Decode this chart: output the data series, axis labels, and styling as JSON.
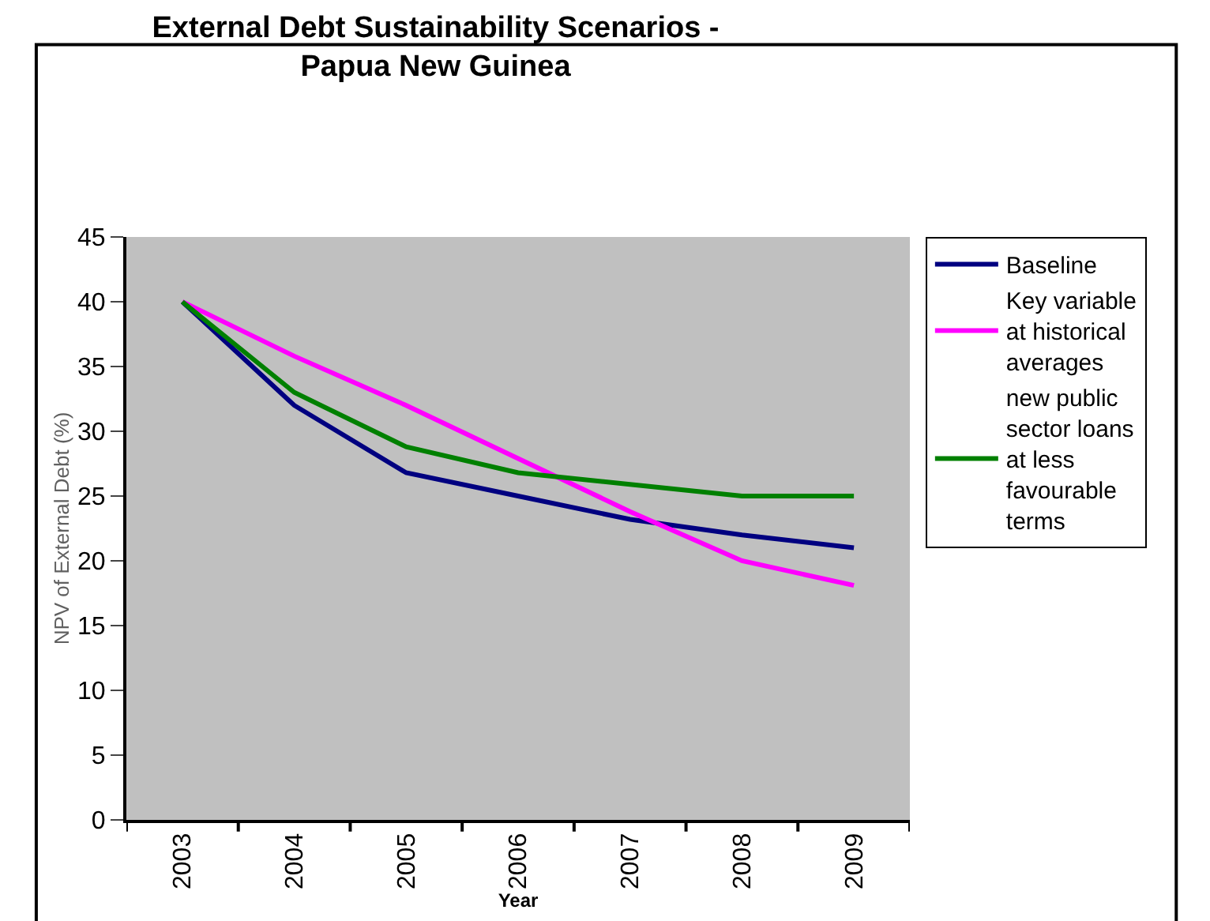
{
  "chart_data": {
    "type": "line",
    "title": "External Debt Sustainability Scenarios - Papua New Guinea",
    "xlabel": "Year",
    "ylabel": "NPV of External Debt (%)",
    "categories": [
      "2003",
      "2004",
      "2005",
      "2006",
      "2007",
      "2008",
      "2009"
    ],
    "series": [
      {
        "name": "Baseline",
        "color": "#000080",
        "values": [
          40,
          32,
          26.8,
          25,
          23.2,
          22,
          21
        ]
      },
      {
        "name": "Key variable at historical averages",
        "color": "#ff00ff",
        "values": [
          40,
          35.8,
          32,
          27.9,
          23.8,
          20,
          18.1
        ]
      },
      {
        "name": "new public sector loans at less favourable terms",
        "color": "#008000",
        "values": [
          40,
          33,
          28.8,
          26.8,
          25.9,
          25,
          25
        ]
      }
    ],
    "ylim": [
      0,
      45
    ],
    "yticks": [
      0,
      5,
      10,
      15,
      20,
      25,
      30,
      35,
      40,
      45
    ],
    "grid": false,
    "legend": "right",
    "marker": "none",
    "line_style": "solid"
  }
}
